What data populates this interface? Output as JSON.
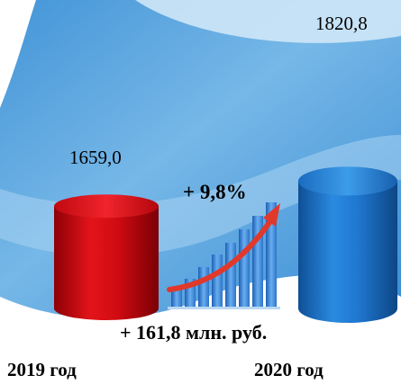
{
  "chart_data": {
    "type": "bar",
    "categories": [
      "2019 год",
      "2020 год"
    ],
    "values": [
      1659.0,
      1820.8
    ],
    "value_labels": [
      "1659,0",
      "1820,8"
    ],
    "bar_colors": [
      "#d40a10",
      "#1f77d0"
    ],
    "bar_shape": "cylinder",
    "ylim": [
      0,
      2000
    ],
    "change_percent_label": "+ 9,8%",
    "change_absolute_label": "+ 161,8 млн. руб.",
    "grid": false,
    "legend": "none"
  },
  "colors": {
    "background": "#ffffff",
    "swirl_light": "#cfe7f7",
    "swirl_dark": "#3391dd",
    "arrow": "#e0392b"
  },
  "icons": {
    "growth": "growth-chart-icon"
  }
}
